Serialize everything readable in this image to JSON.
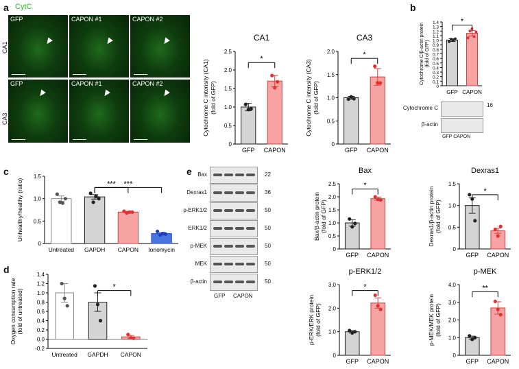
{
  "panel_letters": {
    "a": "a",
    "b": "b",
    "c": "c",
    "d": "d",
    "e": "e"
  },
  "panel_a": {
    "stain_label": "CytC",
    "stain_color": "#22c322",
    "row_labels": [
      "CA1",
      "CA3"
    ],
    "col_labels": [
      "GFP",
      "CAPON #1",
      "CAPON #2"
    ]
  },
  "blot_b": {
    "bands": [
      "Cytochrome C",
      "β-actin"
    ],
    "mw": "16",
    "lanes": "GFP CAPON"
  },
  "blot_e": {
    "bands": [
      "Bax",
      "Dexras1",
      "p-ERK1/2",
      "ERK1/2",
      "p-MEK",
      "MEK",
      "β-actin"
    ],
    "mw": [
      "22",
      "36",
      "50",
      "50",
      "50",
      "50",
      "50"
    ],
    "lanes": [
      "GFP",
      "CAPON"
    ]
  },
  "colors": {
    "gfp": "#d4d4d4",
    "capon": "#f7a3a3",
    "capon_dot": "#e03030",
    "ionomycin": "#4a74e0",
    "ionomycin_dot": "#1d3fbf",
    "dot": "#222222"
  },
  "chart_data": [
    {
      "id": "ca1",
      "type": "bar",
      "title": "CA1",
      "ylabel": "Cytochrome C intensity (CA1) (fold of GFP)",
      "categories": [
        "GFP",
        "CAPON"
      ],
      "values": [
        1.0,
        1.7
      ],
      "errors": [
        0.1,
        0.15
      ],
      "ylim": [
        0,
        2.5
      ],
      "yticks": [
        "0",
        "0.5",
        "1.0",
        "1.5",
        "2.0",
        "2.5"
      ],
      "points": [
        [
          1.07,
          0.93,
          0.95
        ],
        [
          1.85,
          1.52,
          1.68
        ]
      ],
      "significance": [
        "*"
      ]
    },
    {
      "id": "ca3",
      "type": "bar",
      "title": "CA3",
      "ylabel": "Cytochrome C intensity (CA3) (fold of GFP)",
      "categories": [
        "GFP",
        "CAPON"
      ],
      "values": [
        1.0,
        1.45
      ],
      "errors": [
        0.03,
        0.18
      ],
      "ylim": [
        0,
        2.0
      ],
      "yticks": [
        "0",
        "0.5",
        "1.0",
        "1.5",
        "2.0"
      ],
      "points": [
        [
          0.97,
          1.02,
          0.98
        ],
        [
          1.68,
          1.32,
          1.32
        ]
      ],
      "significance": [
        "*"
      ]
    },
    {
      "id": "b",
      "type": "bar",
      "title": "",
      "ylabel": "Cytochrome C/β-actin protein (fold of GFP)",
      "categories": [
        "GFP",
        "CAPON"
      ],
      "values": [
        1.0,
        1.15
      ],
      "errors": [
        0.03,
        0.06
      ],
      "ylim": [
        0,
        1.4
      ],
      "yticks": [
        "0",
        "0.1",
        "0.2",
        "0.3",
        "0.4",
        "0.5",
        "0.6",
        "0.7",
        "0.8",
        "0.9",
        "1.0",
        "1.1",
        "1.2",
        "1.3",
        "1.4"
      ],
      "points": [
        [
          0.97,
          1.02,
          1.0,
          1.03
        ],
        [
          1.05,
          1.2,
          1.25,
          1.08,
          1.18
        ]
      ],
      "significance": [
        "*"
      ]
    },
    {
      "id": "c",
      "type": "bar",
      "title": "",
      "ylabel": "Unhealthy/healthy (ratio)",
      "categories": [
        "Untreated",
        "GAPDH",
        "CAPON",
        "Ionomycin"
      ],
      "values": [
        1.0,
        1.04,
        0.7,
        0.22
      ],
      "errors": [
        0.06,
        0.05,
        0.02,
        0.03
      ],
      "ylim": [
        0,
        1.5
      ],
      "yticks": [
        "0",
        "0.5",
        "1.0",
        "1.5"
      ],
      "points": [
        [
          1.1,
          0.92,
          0.9,
          1.0
        ],
        [
          1.12,
          0.92,
          1.05,
          1.0
        ],
        [
          0.72,
          0.68,
          0.7,
          0.7
        ],
        [
          0.27,
          0.19,
          0.22,
          0.21
        ]
      ],
      "significance": [
        "***",
        "***"
      ]
    },
    {
      "id": "d",
      "type": "bar",
      "title": "",
      "ylabel": "Oxygen consumption rate (fold of untreated)",
      "categories": [
        "Untreated",
        "GAPDH",
        "CAPON"
      ],
      "values": [
        1.0,
        0.8,
        0.05
      ],
      "errors": [
        0.2,
        0.2,
        0.03
      ],
      "ylim": [
        -0.2,
        1.4
      ],
      "yticks": [
        "-0.2",
        "0.0",
        "0.2",
        "0.4",
        "0.6",
        "0.8",
        "1.0",
        "1.2",
        "1.4"
      ],
      "points": [
        [
          1.2,
          0.88,
          0.72
        ],
        [
          1.15,
          0.75,
          0.4
        ],
        [
          0.1,
          0.03,
          0.02
        ]
      ],
      "significance": [
        "*"
      ]
    },
    {
      "id": "bax",
      "type": "bar",
      "title": "Bax",
      "ylabel": "Bax/β-actin protein (fold of GFP)",
      "categories": [
        "GFP",
        "CAPON"
      ],
      "values": [
        1.0,
        1.93
      ],
      "errors": [
        0.12,
        0.06
      ],
      "ylim": [
        0,
        2.5
      ],
      "yticks": [
        "0",
        "0.5",
        "1.0",
        "1.5",
        "2.0",
        "2.5"
      ],
      "points": [
        [
          1.15,
          0.85,
          0.98
        ],
        [
          2.0,
          1.9,
          1.88
        ]
      ],
      "significance": [
        "*"
      ]
    },
    {
      "id": "dexras",
      "type": "bar",
      "title": "Dexras1",
      "ylabel": "Dexras1/β-actin protein (fold of GFP)",
      "categories": [
        "GFP",
        "CAPON"
      ],
      "values": [
        1.0,
        0.42
      ],
      "errors": [
        0.18,
        0.06
      ],
      "ylim": [
        0,
        1.5
      ],
      "yticks": [
        "0",
        "0.5",
        "1.0",
        "1.5"
      ],
      "points": [
        [
          1.25,
          1.15,
          0.65
        ],
        [
          0.45,
          0.3,
          0.52
        ]
      ],
      "significance": [
        "*"
      ]
    },
    {
      "id": "perk",
      "type": "bar",
      "title": "p-ERK1/2",
      "ylabel": "p-ERK/ERK protein (fold of GFP)",
      "categories": [
        "GFP",
        "CAPON"
      ],
      "values": [
        1.0,
        2.22
      ],
      "errors": [
        0.05,
        0.22
      ],
      "ylim": [
        0,
        3.0
      ],
      "yticks": [
        "0",
        "1.0",
        "2.0",
        "3.0"
      ],
      "points": [
        [
          1.05,
          0.95,
          1.0
        ],
        [
          2.55,
          2.1,
          1.95
        ]
      ],
      "significance": [
        "*"
      ]
    },
    {
      "id": "pmek",
      "type": "bar",
      "title": "p-MEK",
      "ylabel": "p-MEK/MEK protein (fold of GFP)",
      "categories": [
        "GFP",
        "CAPON"
      ],
      "values": [
        1.0,
        2.68
      ],
      "errors": [
        0.08,
        0.35
      ],
      "ylim": [
        0,
        4.0
      ],
      "yticks": [
        "0",
        "1.0",
        "2.0",
        "3.0",
        "4.0"
      ],
      "points": [
        [
          1.1,
          0.9,
          1.0
        ],
        [
          3.05,
          2.6,
          2.3
        ]
      ],
      "significance": [
        "**"
      ]
    }
  ]
}
